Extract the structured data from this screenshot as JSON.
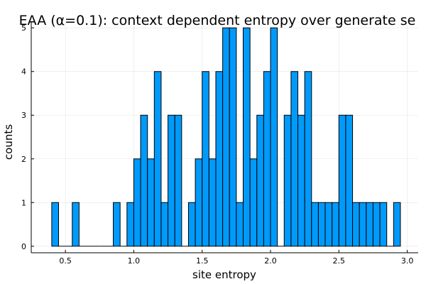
{
  "chart_data": {
    "type": "bar",
    "title": "EAA (α=0.1): context dependent entropy over generate se",
    "xlabel": "site entropy",
    "ylabel": "counts",
    "xlim": [
      0.25,
      3.08
    ],
    "ylim": [
      -0.15,
      5.15
    ],
    "grid": true,
    "legend": "none",
    "bar_color": "#009AFA",
    "bin_width": 0.05,
    "bin_starts": [
      0.4,
      0.45,
      0.5,
      0.55,
      0.6,
      0.65,
      0.7,
      0.75,
      0.8,
      0.85,
      0.9,
      0.95,
      1.0,
      1.05,
      1.1,
      1.15,
      1.2,
      1.25,
      1.3,
      1.35,
      1.4,
      1.45,
      1.5,
      1.55,
      1.6,
      1.65,
      1.7,
      1.75,
      1.8,
      1.85,
      1.9,
      1.95,
      2.0,
      2.05,
      2.1,
      2.15,
      2.2,
      2.25,
      2.3,
      2.35,
      2.4,
      2.45,
      2.5,
      2.55,
      2.6,
      2.65,
      2.7,
      2.75,
      2.8,
      2.85,
      2.9
    ],
    "values": [
      1,
      0,
      0,
      1,
      0,
      0,
      0,
      0,
      0,
      1,
      0,
      1,
      2,
      3,
      2,
      4,
      1,
      3,
      3,
      0,
      1,
      2,
      4,
      2,
      4,
      5,
      5,
      1,
      5,
      2,
      3,
      4,
      5,
      0,
      3,
      4,
      3,
      4,
      1,
      1,
      1,
      1,
      3,
      3,
      1,
      1,
      1,
      1,
      1,
      0,
      1
    ],
    "x_ticks": [
      0.5,
      1.0,
      1.5,
      2.0,
      2.5,
      3.0
    ],
    "x_tick_labels": [
      "0.5",
      "1.0",
      "1.5",
      "2.0",
      "2.5",
      "3.0"
    ],
    "y_ticks": [
      0,
      1,
      2,
      3,
      4,
      5
    ],
    "y_tick_labels": [
      "0",
      "1",
      "2",
      "3",
      "4",
      "5"
    ]
  }
}
